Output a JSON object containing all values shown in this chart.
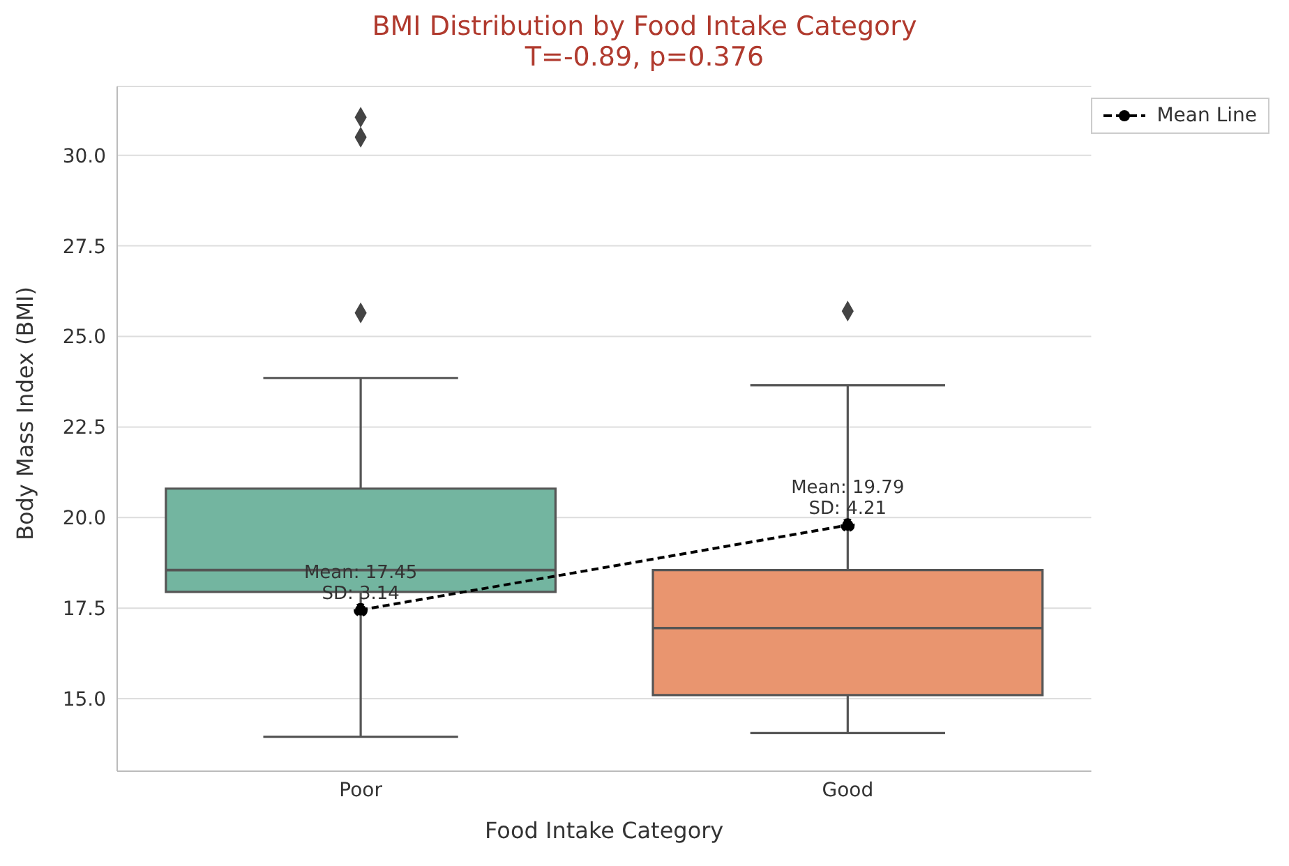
{
  "chart_data": {
    "type": "box",
    "title": "BMI Distribution by Food Intake Category",
    "subtitle": "T=-0.89, p=0.376",
    "xlabel": "Food Intake Category",
    "ylabel": "Body Mass Index (BMI)",
    "categories": [
      "Poor",
      "Good"
    ],
    "colors": [
      "#73b5a0",
      "#e9956f"
    ],
    "boxes": [
      {
        "low": 13.95,
        "q1": 17.95,
        "median": 18.55,
        "q3": 20.8,
        "high": 23.85,
        "outliers": [
          25.65,
          30.5,
          31.05
        ]
      },
      {
        "low": 14.05,
        "q1": 15.1,
        "median": 16.95,
        "q3": 18.55,
        "high": 23.65,
        "outliers": [
          25.7
        ]
      }
    ],
    "series": [
      {
        "name": "Mean Line",
        "type": "line",
        "x": [
          "Poor",
          "Good"
        ],
        "values": [
          17.45,
          19.79
        ],
        "color": "#000000",
        "line_style": "dashed",
        "marker": "circle"
      }
    ],
    "annotations": [
      {
        "text": "Mean: 17.45\nSD: 3.14",
        "x": "Poor",
        "y": 17.45
      },
      {
        "text": "Mean: 19.79\nSD: 4.21",
        "x": "Good",
        "y": 19.79
      }
    ],
    "ylim": [
      13.0,
      31.9
    ],
    "yticks": [
      {
        "value": 15,
        "label": "15.0"
      },
      17.5,
      {
        "value": 20,
        "label": "20.0"
      },
      22.5,
      {
        "value": 25,
        "label": "25.0"
      },
      27.5,
      {
        "value": 30,
        "label": "30.0"
      }
    ],
    "grid": "y",
    "legend": "top right"
  }
}
